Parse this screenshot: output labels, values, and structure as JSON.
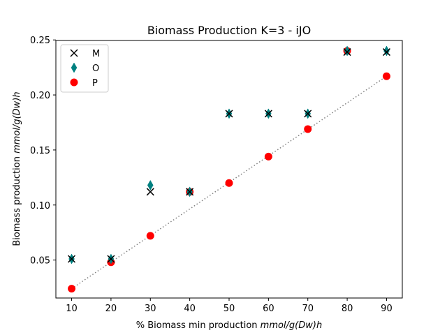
{
  "chart_data": {
    "type": "scatter",
    "title": "Biomass Production K=3 - iJO",
    "xlabel_prefix": "% Biomass min production ",
    "xlabel_unit": "mmol/g(Dw)h",
    "ylabel_prefix": "Biomass  production ",
    "ylabel_unit": "mmol/g(Dw)h",
    "xlim": [
      6,
      94
    ],
    "ylim": [
      0.0155,
      0.2495
    ],
    "xticks": [
      10,
      20,
      30,
      40,
      50,
      60,
      70,
      80,
      90
    ],
    "xtick_labels": [
      "10",
      "20",
      "30",
      "40",
      "50",
      "60",
      "70",
      "80",
      "90"
    ],
    "yticks": [
      0.05,
      0.1,
      0.15,
      0.2,
      0.25
    ],
    "ytick_labels": [
      "0.05",
      "0.10",
      "0.15",
      "0.20",
      "0.25"
    ],
    "legend_position": "top-left",
    "trend_line": {
      "x": [
        10,
        90
      ],
      "y": [
        0.024,
        0.217
      ],
      "color": "#808080",
      "style": "dotted"
    },
    "series": [
      {
        "name": "M",
        "marker": "x",
        "color": "#000000",
        "x": [
          10,
          20,
          30,
          40,
          50,
          60,
          70,
          80,
          90
        ],
        "y": [
          0.051,
          0.051,
          0.112,
          0.112,
          0.183,
          0.183,
          0.183,
          0.239,
          0.239
        ]
      },
      {
        "name": "O",
        "marker": "diamond",
        "color": "#008080",
        "x": [
          10,
          20,
          30,
          40,
          50,
          60,
          70,
          80,
          90
        ],
        "y": [
          0.051,
          0.051,
          0.118,
          0.112,
          0.183,
          0.183,
          0.183,
          0.24,
          0.24
        ]
      },
      {
        "name": "P",
        "marker": "circle",
        "color": "#ff0000",
        "x": [
          10,
          20,
          30,
          40,
          50,
          60,
          70,
          80,
          90
        ],
        "y": [
          0.024,
          0.048,
          0.072,
          0.112,
          0.12,
          0.144,
          0.169,
          0.24,
          0.217
        ]
      }
    ]
  }
}
